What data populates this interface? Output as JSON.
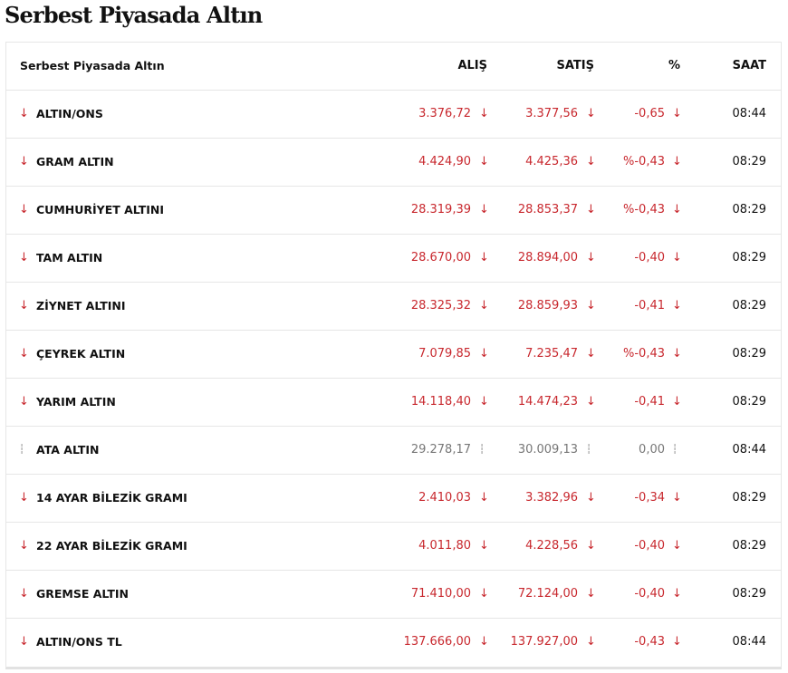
{
  "header": {
    "title": "Serbest Piyasada Altın"
  },
  "table": {
    "columns": [
      "Serbest Piyasada Altın",
      "ALIŞ",
      "SATIŞ",
      "%",
      "SAAT"
    ],
    "rows": [
      {
        "name": "ALTIN/ONS",
        "buy": "3.376,72",
        "sell": "3.377,56",
        "change": "-0,65",
        "time": "08:44",
        "trend": "down"
      },
      {
        "name": "GRAM ALTIN",
        "buy": "4.424,90",
        "sell": "4.425,36",
        "change": "%-0,43",
        "time": "08:29",
        "trend": "down"
      },
      {
        "name": "CUMHURİYET ALTINI",
        "buy": "28.319,39",
        "sell": "28.853,37",
        "change": "%-0,43",
        "time": "08:29",
        "trend": "down"
      },
      {
        "name": "TAM ALTIN",
        "buy": "28.670,00",
        "sell": "28.894,00",
        "change": "-0,40",
        "time": "08:29",
        "trend": "down"
      },
      {
        "name": "ZİYNET ALTINI",
        "buy": "28.325,32",
        "sell": "28.859,93",
        "change": "-0,41",
        "time": "08:29",
        "trend": "down"
      },
      {
        "name": "ÇEYREK ALTIN",
        "buy": "7.079,85",
        "sell": "7.235,47",
        "change": "%-0,43",
        "time": "08:29",
        "trend": "down"
      },
      {
        "name": "YARIM ALTIN",
        "buy": "14.118,40",
        "sell": "14.474,23",
        "change": "-0,41",
        "time": "08:29",
        "trend": "down"
      },
      {
        "name": "ATA ALTIN",
        "buy": "29.278,17",
        "sell": "30.009,13",
        "change": "0,00",
        "time": "08:44",
        "trend": "flat"
      },
      {
        "name": "14 AYAR BİLEZİK GRAMI",
        "buy": "2.410,03",
        "sell": "3.382,96",
        "change": "-0,34",
        "time": "08:29",
        "trend": "down"
      },
      {
        "name": "22 AYAR BİLEZİK GRAMI",
        "buy": "4.011,80",
        "sell": "4.228,56",
        "change": "-0,40",
        "time": "08:29",
        "trend": "down"
      },
      {
        "name": "GREMSE ALTIN",
        "buy": "71.410,00",
        "sell": "72.124,00",
        "change": "-0,40",
        "time": "08:29",
        "trend": "down"
      },
      {
        "name": "ALTIN/ONS TL",
        "buy": "137.666,00",
        "sell": "137.927,00",
        "change": "-0,43",
        "time": "08:44",
        "trend": "down"
      }
    ]
  }
}
